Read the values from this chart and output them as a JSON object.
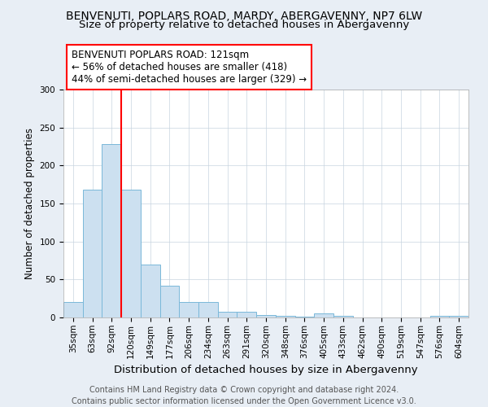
{
  "title": "BENVENUTI, POPLARS ROAD, MARDY, ABERGAVENNY, NP7 6LW",
  "subtitle": "Size of property relative to detached houses in Abergavenny",
  "xlabel": "Distribution of detached houses by size in Abergavenny",
  "ylabel": "Number of detached properties",
  "footnote": "Contains HM Land Registry data © Crown copyright and database right 2024.\nContains public sector information licensed under the Open Government Licence v3.0.",
  "bar_labels": [
    "35sqm",
    "63sqm",
    "92sqm",
    "120sqm",
    "149sqm",
    "177sqm",
    "206sqm",
    "234sqm",
    "263sqm",
    "291sqm",
    "320sqm",
    "348sqm",
    "376sqm",
    "405sqm",
    "433sqm",
    "462sqm",
    "490sqm",
    "519sqm",
    "547sqm",
    "576sqm",
    "604sqm"
  ],
  "bar_values": [
    20,
    168,
    228,
    168,
    70,
    42,
    20,
    20,
    8,
    7,
    3,
    2,
    1,
    5,
    2,
    0,
    0,
    0,
    0,
    2,
    2
  ],
  "bar_color": "#cce0f0",
  "bar_edge_color": "#7ab8d9",
  "annotation_text": "BENVENUTI POPLARS ROAD: 121sqm\n← 56% of detached houses are smaller (418)\n44% of semi-detached houses are larger (329) →",
  "annotation_box_color": "white",
  "annotation_box_edge_color": "red",
  "vline_color": "red",
  "vline_pos": 2.5,
  "ylim": [
    0,
    300
  ],
  "yticks": [
    0,
    50,
    100,
    150,
    200,
    250,
    300
  ],
  "bg_color": "#e8eef5",
  "plot_bg_color": "white",
  "grid_color": "#c8d4e0",
  "title_fontsize": 10,
  "subtitle_fontsize": 9.5,
  "xlabel_fontsize": 9.5,
  "ylabel_fontsize": 8.5,
  "tick_fontsize": 7.5,
  "annotation_fontsize": 8.5,
  "footnote_fontsize": 7
}
